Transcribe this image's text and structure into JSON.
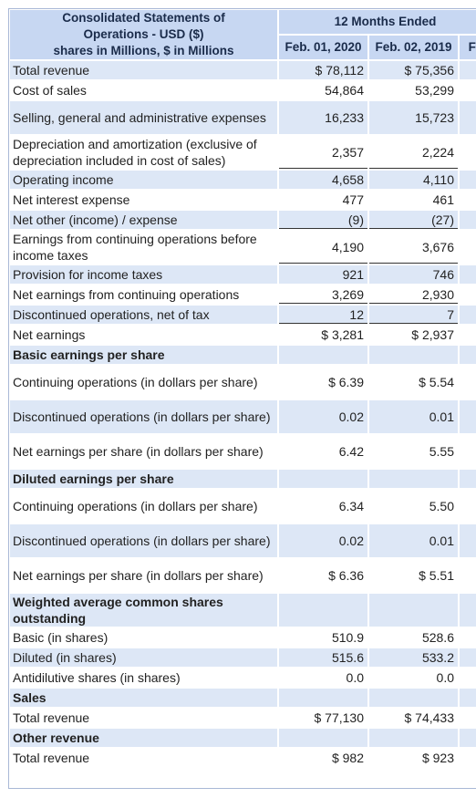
{
  "header": {
    "title_lines": [
      "Consolidated Statements of",
      "Operations - USD ($)",
      "shares in Millions, $ in Millions"
    ],
    "period": "12 Months Ended",
    "dates": [
      "Feb. 01, 2020",
      "Feb. 02, 2019",
      "Fe"
    ]
  },
  "rows": [
    {
      "label": "Total revenue",
      "v1": "$ 78,112",
      "v2": "$ 75,356"
    },
    {
      "label": "Cost of sales",
      "v1": "54,864",
      "v2": "53,299"
    },
    {
      "label": "Selling, general and administrative expenses",
      "v1": "16,233",
      "v2": "15,723"
    },
    {
      "label": "Depreciation and amortization (exclusive of depreciation included in cost of sales)",
      "v1": "2,357",
      "v2": "2,224"
    },
    {
      "label": "Operating income",
      "v1": "4,658",
      "v2": "4,110"
    },
    {
      "label": "Net interest expense",
      "v1": "477",
      "v2": "461"
    },
    {
      "label": "Net other (income) / expense",
      "v1": "(9)",
      "v2": "(27)"
    },
    {
      "label": "Earnings from continuing operations before income taxes",
      "v1": "4,190",
      "v2": "3,676"
    },
    {
      "label": "Provision for income taxes",
      "v1": "921",
      "v2": "746"
    },
    {
      "label": "Net earnings from continuing operations",
      "v1": "3,269",
      "v2": "2,930"
    },
    {
      "label": "Discontinued operations, net of tax",
      "v1": "12",
      "v2": "7"
    },
    {
      "label": "Net earnings",
      "v1": "$ 3,281",
      "v2": "$ 2,937"
    },
    {
      "label": "Basic earnings per share",
      "v1": "",
      "v2": ""
    },
    {
      "label": "Continuing operations (in dollars per share)",
      "v1": "$ 6.39",
      "v2": "$ 5.54"
    },
    {
      "label": "Discontinued operations (in dollars per share)",
      "v1": "0.02",
      "v2": "0.01"
    },
    {
      "label": "Net earnings per share (in dollars per share)",
      "v1": "6.42",
      "v2": "5.55"
    },
    {
      "label": "Diluted earnings per share",
      "v1": "",
      "v2": ""
    },
    {
      "label": "Continuing operations (in dollars per share)",
      "v1": "6.34",
      "v2": "5.50"
    },
    {
      "label": "Discontinued operations (in dollars per share)",
      "v1": "0.02",
      "v2": "0.01"
    },
    {
      "label": "Net earnings per share (in dollars per share)",
      "v1": "$ 6.36",
      "v2": "$ 5.51"
    },
    {
      "label": "Weighted average common shares outstanding",
      "v1": "",
      "v2": ""
    },
    {
      "label": "Basic (in shares)",
      "v1": "510.9",
      "v2": "528.6"
    },
    {
      "label": "Diluted (in shares)",
      "v1": "515.6",
      "v2": "533.2"
    },
    {
      "label": "Antidilutive shares (in shares)",
      "v1": "0.0",
      "v2": "0.0"
    },
    {
      "label": "Sales",
      "v1": "",
      "v2": ""
    },
    {
      "label": "Total revenue",
      "v1": "$ 77,130",
      "v2": "$ 74,433"
    },
    {
      "label": "Other revenue",
      "v1": "",
      "v2": ""
    },
    {
      "label": "Total revenue",
      "v1": "$ 982",
      "v2": "$ 923"
    }
  ]
}
